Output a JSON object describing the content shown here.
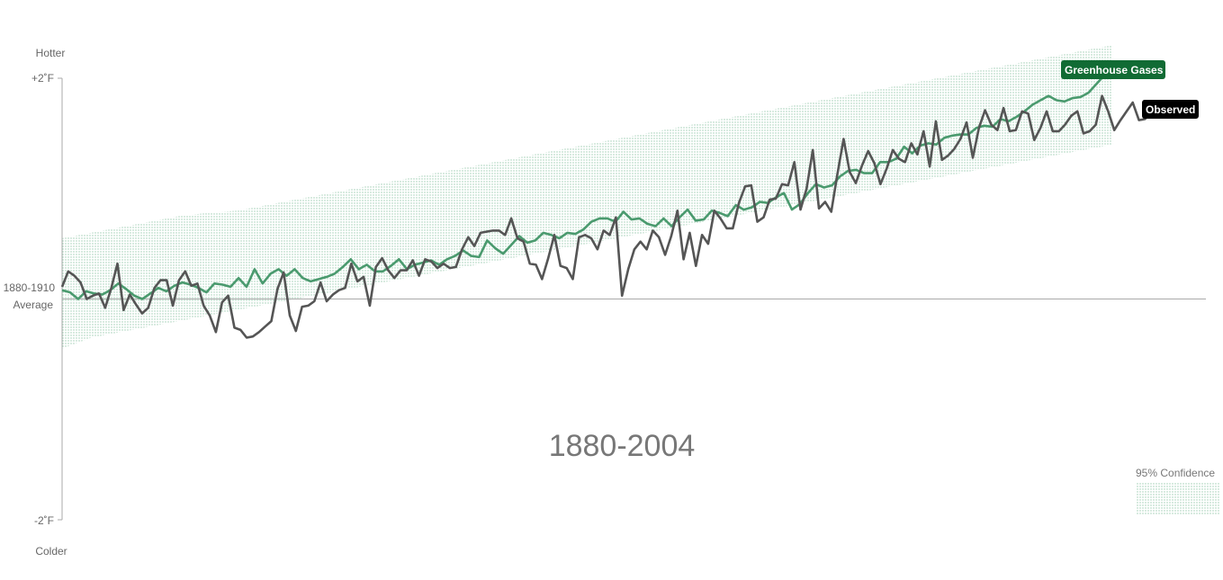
{
  "chart_data": {
    "type": "line",
    "title": "",
    "period_label": "1880-2004",
    "x": {
      "start_year": 1880,
      "end_year": 2004,
      "range": [
        1880,
        2015
      ]
    },
    "y": {
      "range": [
        -2,
        2
      ],
      "unit": "°F",
      "top_label": "Hotter",
      "bottom_label": "Colder",
      "baseline_label_line1": "1880-1910",
      "baseline_label_line2": "Average",
      "ticks": [
        {
          "value": 2,
          "label": "+2˚F"
        },
        {
          "value": -2,
          "label": "-2˚F"
        }
      ]
    },
    "series": [
      {
        "name": "Greenhouse Gases",
        "color": "#4a9a6e",
        "flag_color": "#116b34",
        "values": [
          0.08,
          0.06,
          0.0,
          0.07,
          0.05,
          0.04,
          0.08,
          0.14,
          0.09,
          0.03,
          0.0,
          0.05,
          0.1,
          0.07,
          0.12,
          0.15,
          0.13,
          0.1,
          0.06,
          0.14,
          0.13,
          0.11,
          0.19,
          0.11,
          0.27,
          0.14,
          0.23,
          0.27,
          0.21,
          0.27,
          0.19,
          0.16,
          0.18,
          0.2,
          0.23,
          0.29,
          0.36,
          0.27,
          0.31,
          0.25,
          0.25,
          0.3,
          0.36,
          0.27,
          0.31,
          0.33,
          0.35,
          0.31,
          0.36,
          0.39,
          0.44,
          0.39,
          0.38,
          0.53,
          0.46,
          0.41,
          0.49,
          0.57,
          0.51,
          0.53,
          0.6,
          0.58,
          0.55,
          0.6,
          0.59,
          0.63,
          0.7,
          0.73,
          0.73,
          0.7,
          0.79,
          0.72,
          0.73,
          0.68,
          0.66,
          0.73,
          0.66,
          0.74,
          0.81,
          0.71,
          0.72,
          0.8,
          0.78,
          0.75,
          0.85,
          0.81,
          0.83,
          0.88,
          0.87,
          0.92,
          0.96,
          0.81,
          0.86,
          0.96,
          1.04,
          1.01,
          1.03,
          1.11,
          1.16,
          1.17,
          1.14,
          1.14,
          1.24,
          1.24,
          1.27,
          1.38,
          1.32,
          1.39,
          1.41,
          1.4,
          1.46,
          1.48,
          1.49,
          1.49,
          1.55,
          1.57,
          1.56,
          1.63,
          1.61,
          1.65,
          1.7,
          1.76,
          1.8,
          1.84,
          1.8,
          1.79,
          1.82,
          1.83,
          1.87,
          1.95,
          2.03,
          2.04
        ]
      },
      {
        "name": "Observed",
        "color": "#555555",
        "flag_color": "#000000",
        "values": [
          0.11,
          0.25,
          0.21,
          0.15,
          0.0,
          0.03,
          0.05,
          -0.08,
          0.1,
          0.32,
          -0.1,
          0.04,
          -0.05,
          -0.13,
          -0.08,
          0.1,
          0.17,
          0.17,
          -0.06,
          0.17,
          0.25,
          0.12,
          0.14,
          -0.06,
          -0.15,
          -0.3,
          -0.03,
          0.03,
          -0.26,
          -0.28,
          -0.35,
          -0.34,
          -0.3,
          -0.25,
          -0.2,
          0.09,
          0.24,
          -0.15,
          -0.29,
          -0.07,
          -0.06,
          -0.02,
          0.15,
          -0.02,
          0.04,
          0.08,
          0.1,
          0.32,
          0.16,
          0.2,
          -0.06,
          0.29,
          0.37,
          0.26,
          0.19,
          0.26,
          0.26,
          0.35,
          0.21,
          0.36,
          0.34,
          0.28,
          0.32,
          0.28,
          0.29,
          0.45,
          0.56,
          0.48,
          0.6,
          0.61,
          0.62,
          0.62,
          0.58,
          0.73,
          0.55,
          0.52,
          0.32,
          0.31,
          0.18,
          0.37,
          0.58,
          0.3,
          0.28,
          0.18,
          0.56,
          0.58,
          0.55,
          0.45,
          0.62,
          0.58,
          0.74,
          0.03,
          0.27,
          0.45,
          0.52,
          0.45,
          0.62,
          0.56,
          0.4,
          0.57,
          0.8,
          0.36,
          0.6,
          0.3,
          0.58,
          0.5,
          0.8,
          0.73,
          0.64,
          0.64,
          0.87,
          1.02,
          1.03,
          0.7,
          0.74,
          0.9,
          0.91,
          1.04,
          1.03,
          1.24,
          0.81,
          1.0,
          1.35,
          0.82,
          0.88,
          0.79,
          1.13,
          1.45,
          1.15,
          1.05,
          1.21,
          1.34,
          1.23,
          1.04,
          1.18,
          1.35,
          1.27,
          1.24,
          1.41,
          1.31,
          1.52,
          1.2,
          1.61,
          1.26,
          1.3,
          1.36,
          1.45,
          1.6,
          1.28,
          1.55,
          1.71,
          1.58,
          1.53,
          1.73,
          1.52,
          1.53,
          1.7,
          1.68,
          1.44,
          1.55,
          1.7,
          1.52,
          1.52,
          1.58,
          1.66,
          1.7,
          1.5,
          1.52,
          1.58,
          1.84,
          1.7,
          1.53,
          1.62,
          1.7,
          1.78,
          1.62,
          1.63,
          1.69,
          1.7,
          1.78
        ]
      }
    ],
    "confidence_band": {
      "label": "95% Confidence",
      "color": "#9ccbb0",
      "lower": [
        -0.45,
        -0.35,
        -0.3,
        -0.25,
        -0.2,
        -0.15,
        -0.1,
        -0.05,
        0.0,
        0.05,
        0.1,
        0.15,
        0.2,
        0.25,
        0.3,
        0.35,
        0.4,
        0.45,
        0.5,
        0.55,
        0.6,
        0.65,
        0.7,
        0.75,
        0.8,
        0.85,
        0.9,
        0.95,
        1.0,
        1.05,
        1.1,
        1.15,
        1.2,
        1.25,
        1.3,
        1.35,
        1.4
      ],
      "upper": [
        0.55,
        0.6,
        0.65,
        0.7,
        0.75,
        0.78,
        0.8,
        0.85,
        0.9,
        0.95,
        1.0,
        1.05,
        1.1,
        1.15,
        1.2,
        1.25,
        1.3,
        1.35,
        1.4,
        1.45,
        1.5,
        1.55,
        1.6,
        1.65,
        1.7,
        1.75,
        1.8,
        1.85,
        1.9,
        1.95,
        2.0,
        2.05,
        2.1,
        2.15,
        2.2,
        2.25,
        2.3
      ]
    },
    "grid": false,
    "legend": "bottom-right"
  }
}
